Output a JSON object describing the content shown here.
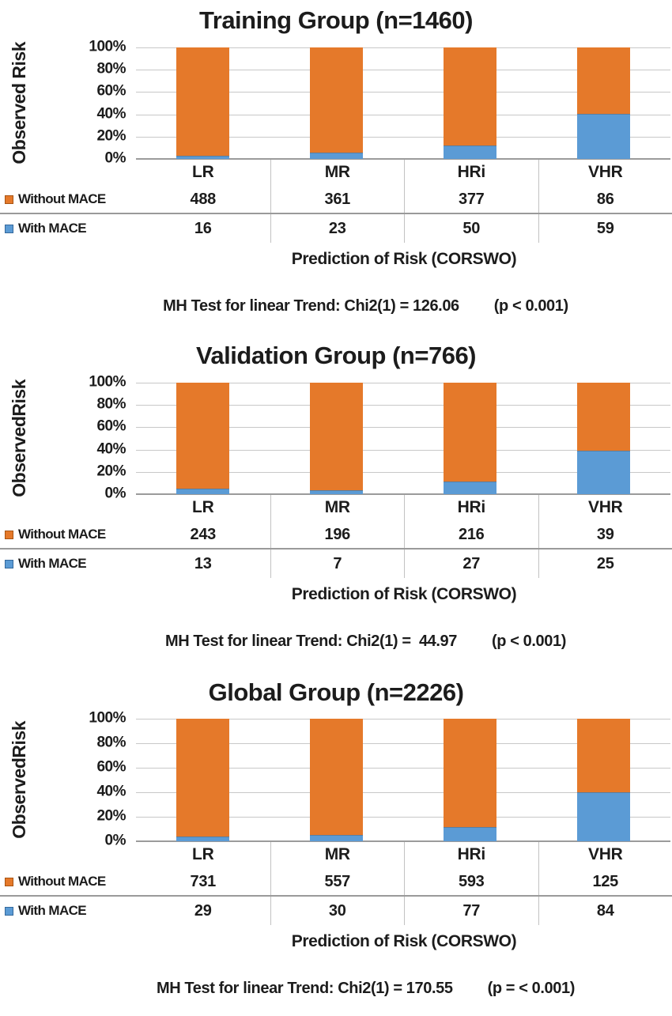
{
  "colors": {
    "without_mace": "#E5792A",
    "with_mace": "#5B9BD5",
    "gridline": "#C8C8C8",
    "axis_line": "#9B9B9B",
    "table_separator": "#9A9A9A",
    "text": "#1C1C1C"
  },
  "legend": {
    "without_mace_swatch": "orange-square",
    "with_mace_swatch": "blue-square"
  },
  "chart_data": [
    {
      "type": "bar",
      "stacked": true,
      "percent_stacked": true,
      "title": "Training Group (n=1460)",
      "ylabel": "Observed Risk",
      "xlabel": "Prediction of Risk (CORSWO)",
      "ylim": [
        0,
        100
      ],
      "y_ticks": [
        "100%",
        "80%",
        "60%",
        "40%",
        "20%",
        "0%"
      ],
      "grid": true,
      "legend_position": "left-table",
      "categories": [
        "LR",
        "MR",
        "HRi",
        "VHR"
      ],
      "series": [
        {
          "name": "Without MACE",
          "color": "#E5792A",
          "values": [
            488,
            361,
            377,
            86
          ]
        },
        {
          "name": "With MACE",
          "color": "#5B9BD5",
          "values": [
            16,
            23,
            50,
            59
          ]
        }
      ],
      "stat_line": "MH Test for linear Trend: Chi2(1) = 126.06",
      "p_label": "(p < 0.001)"
    },
    {
      "type": "bar",
      "stacked": true,
      "percent_stacked": true,
      "title": "Validation Group (n=766)",
      "ylabel": "ObservedRisk",
      "xlabel": "Prediction of Risk (CORSWO)",
      "ylim": [
        0,
        100
      ],
      "y_ticks": [
        "100%",
        "80%",
        "60%",
        "40%",
        "20%",
        "0%"
      ],
      "grid": true,
      "legend_position": "left-table",
      "categories": [
        "LR",
        "MR",
        "HRi",
        "VHR"
      ],
      "series": [
        {
          "name": "Without MACE",
          "color": "#E5792A",
          "values": [
            243,
            196,
            216,
            39
          ]
        },
        {
          "name": "With MACE",
          "color": "#5B9BD5",
          "values": [
            13,
            7,
            27,
            25
          ]
        }
      ],
      "stat_line": "MH Test for linear Trend: Chi2(1) =  44.97",
      "p_label": "(p < 0.001)"
    },
    {
      "type": "bar",
      "stacked": true,
      "percent_stacked": true,
      "title": "Global Group (n=2226)",
      "ylabel": "ObservedRisk",
      "xlabel": "Prediction of Risk (CORSWO)",
      "ylim": [
        0,
        100
      ],
      "y_ticks": [
        "100%",
        "80%",
        "60%",
        "40%",
        "20%",
        "0%"
      ],
      "grid": true,
      "legend_position": "left-table",
      "categories": [
        "LR",
        "MR",
        "HRi",
        "VHR"
      ],
      "series": [
        {
          "name": "Without MACE",
          "color": "#E5792A",
          "values": [
            731,
            557,
            593,
            125
          ]
        },
        {
          "name": "With MACE",
          "color": "#5B9BD5",
          "values": [
            29,
            30,
            77,
            84
          ]
        }
      ],
      "stat_line": "MH Test for linear Trend: Chi2(1) = 170.55",
      "p_label": "(p = < 0.001)"
    }
  ]
}
